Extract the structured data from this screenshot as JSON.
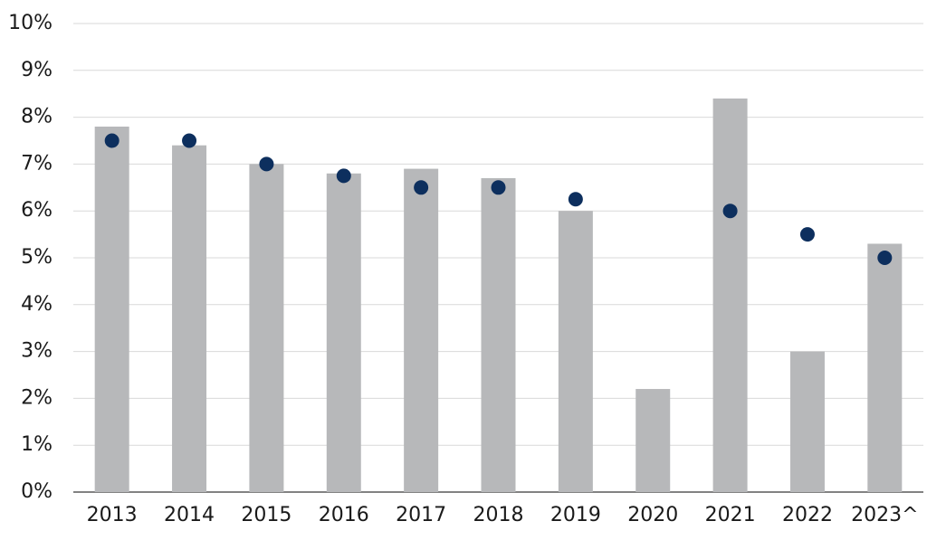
{
  "chart_data": {
    "type": "bar",
    "categories": [
      "2013",
      "2014",
      "2015",
      "2016",
      "2017",
      "2018",
      "2019",
      "2020",
      "2021",
      "2022",
      "2023^"
    ],
    "series": [
      {
        "type": "bar",
        "color": "#b7b8ba",
        "values": [
          7.8,
          7.4,
          7.0,
          6.8,
          6.9,
          6.7,
          6.0,
          2.2,
          8.4,
          3.0,
          5.3
        ]
      },
      {
        "type": "dot",
        "color": "#0d2f5e",
        "values": [
          7.5,
          7.5,
          7.0,
          6.75,
          6.5,
          6.5,
          6.25,
          null,
          6.0,
          5.5,
          5.0
        ]
      }
    ],
    "ylim": [
      0,
      10
    ],
    "yticks": [
      {
        "value": 0,
        "label": "0%"
      },
      {
        "value": 1,
        "label": "1%"
      },
      {
        "value": 2,
        "label": "2%"
      },
      {
        "value": 3,
        "label": "3%"
      },
      {
        "value": 4,
        "label": "4%"
      },
      {
        "value": 5,
        "label": "5%"
      },
      {
        "value": 6,
        "label": "6%"
      },
      {
        "value": 7,
        "label": "7%"
      },
      {
        "value": 8,
        "label": "8%"
      },
      {
        "value": 9,
        "label": "9%"
      },
      {
        "value": 10,
        "label": "10%"
      }
    ],
    "grid": true
  }
}
